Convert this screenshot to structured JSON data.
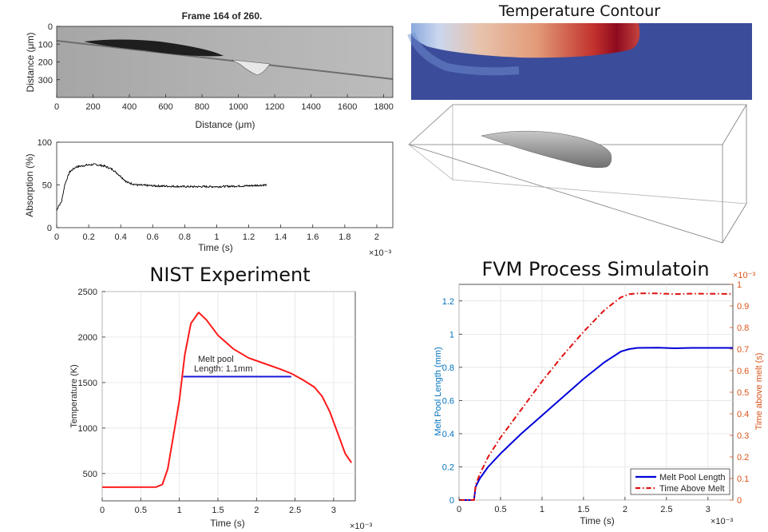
{
  "chart_data": [
    {
      "type": "heatmap",
      "title": "Frame  164 of 260.",
      "xlabel": "Distance (μm)",
      "ylabel": "Distance (μm)",
      "xlim": [
        0,
        1850
      ],
      "ylim": [
        400,
        0
      ],
      "xticks": [
        "0",
        "200",
        "400",
        "600",
        "800",
        "1000",
        "1200",
        "1400",
        "1600",
        "1800"
      ],
      "yticks": [
        "0",
        "100",
        "200",
        "300"
      ]
    },
    {
      "type": "line",
      "xlabel": "Time (s)",
      "ylabel": "Absorption (%)",
      "xlim": [
        0,
        2.1
      ],
      "ylim": [
        0,
        100
      ],
      "xticks": [
        "0",
        "0.2",
        "0.4",
        "0.6",
        "0.8",
        "1",
        "1.2",
        "1.4",
        "1.6",
        "1.8",
        "2"
      ],
      "yticks": [
        "0",
        "50",
        "100"
      ],
      "exponent": "×10⁻³",
      "series": [
        {
          "color": "#000000",
          "x": [
            0,
            0.01,
            0.03,
            0.05,
            0.08,
            0.12,
            0.18,
            0.24,
            0.3,
            0.35,
            0.4,
            0.44,
            0.5,
            0.6,
            0.8,
            1.0,
            1.2,
            1.31
          ],
          "y": [
            20,
            25,
            30,
            50,
            65,
            71,
            73,
            74,
            72,
            68,
            60,
            53,
            50,
            49,
            48,
            48,
            49,
            50
          ]
        }
      ]
    },
    {
      "type": "line",
      "title": "NIST Experiment",
      "xlabel": "Time (s)",
      "ylabel": "Temperature (K)",
      "xlim": [
        0,
        3.28
      ],
      "ylim": [
        200,
        2500
      ],
      "xticks": [
        "0",
        "0.5",
        "1",
        "1.5",
        "2",
        "2.5",
        "3"
      ],
      "yticks": [
        "500",
        "1000",
        "1500",
        "2000",
        "2500"
      ],
      "exponent": "×10⁻³",
      "annotation": [
        "Melt pool",
        "Length: 1.1mm"
      ],
      "series": [
        {
          "color": "#ff1a1a",
          "x": [
            0,
            0.7,
            0.78,
            0.85,
            0.92,
            1.0,
            1.07,
            1.15,
            1.25,
            1.35,
            1.5,
            1.7,
            1.9,
            2.1,
            2.3,
            2.45,
            2.6,
            2.75,
            2.85,
            2.95,
            3.05,
            3.15,
            3.23
          ],
          "y": [
            350,
            352,
            380,
            550,
            900,
            1300,
            1800,
            2150,
            2270,
            2190,
            2020,
            1870,
            1770,
            1710,
            1650,
            1600,
            1530,
            1450,
            1350,
            1180,
            950,
            720,
            620
          ]
        },
        {
          "color": "#1a1adb",
          "x": [
            1.05,
            2.45
          ],
          "y": [
            1565,
            1565
          ]
        }
      ]
    },
    {
      "type": "line",
      "title": "FVM Process Simulatoin",
      "xlabel": "Time (s)",
      "ylabel": "Melt Pool Length (mm)",
      "ylabel_right": "Time above melt (s)",
      "xlim": [
        0,
        3.3
      ],
      "ylim": [
        0,
        1.3
      ],
      "ylim_right": [
        0,
        1
      ],
      "xticks": [
        "0",
        "0.5",
        "1",
        "1.5",
        "2",
        "2.5",
        "3"
      ],
      "yticks": [
        "0",
        "0.2",
        "0.4",
        "0.6",
        "0.8",
        "1",
        "1.2"
      ],
      "yticks_right": [
        "0",
        "0.1",
        "0.2",
        "0.3",
        "0.4",
        "0.5",
        "0.6",
        "0.7",
        "0.8",
        "0.9",
        "1"
      ],
      "exponent": "×10⁻³",
      "exponent_right": "×10⁻³",
      "legend": "bottom-right",
      "series": [
        {
          "name": "Melt Pool Length",
          "color": "#0000d9",
          "axis": "left",
          "style": "solid",
          "x": [
            0,
            0.18,
            0.2,
            0.25,
            0.35,
            0.5,
            0.75,
            1.0,
            1.25,
            1.5,
            1.75,
            1.95,
            2.05,
            2.15,
            2.4,
            2.6,
            2.8,
            3.3
          ],
          "y": [
            0,
            0,
            0.08,
            0.13,
            0.2,
            0.28,
            0.4,
            0.51,
            0.62,
            0.73,
            0.83,
            0.895,
            0.91,
            0.917,
            0.918,
            0.915,
            0.917,
            0.917
          ]
        },
        {
          "name": "Time Above Melt",
          "color": "#e01010",
          "axis": "right",
          "style": "dashdot",
          "x": [
            0,
            0.18,
            0.2,
            0.25,
            0.35,
            0.5,
            0.75,
            1.0,
            1.25,
            1.5,
            1.75,
            1.95,
            2.05,
            2.15,
            2.4,
            2.6,
            2.8,
            3.3
          ],
          "y": [
            0,
            0,
            0.07,
            0.12,
            0.2,
            0.29,
            0.42,
            0.55,
            0.67,
            0.78,
            0.88,
            0.94,
            0.955,
            0.958,
            0.958,
            0.955,
            0.957,
            0.956
          ]
        }
      ]
    },
    {
      "type": "heatmap",
      "title": "Temperature Contour"
    }
  ],
  "colors": {
    "axis": "#262626",
    "grid": "#dfdfdf",
    "left_axis": "#0072bd",
    "right_axis": "#d95319"
  }
}
